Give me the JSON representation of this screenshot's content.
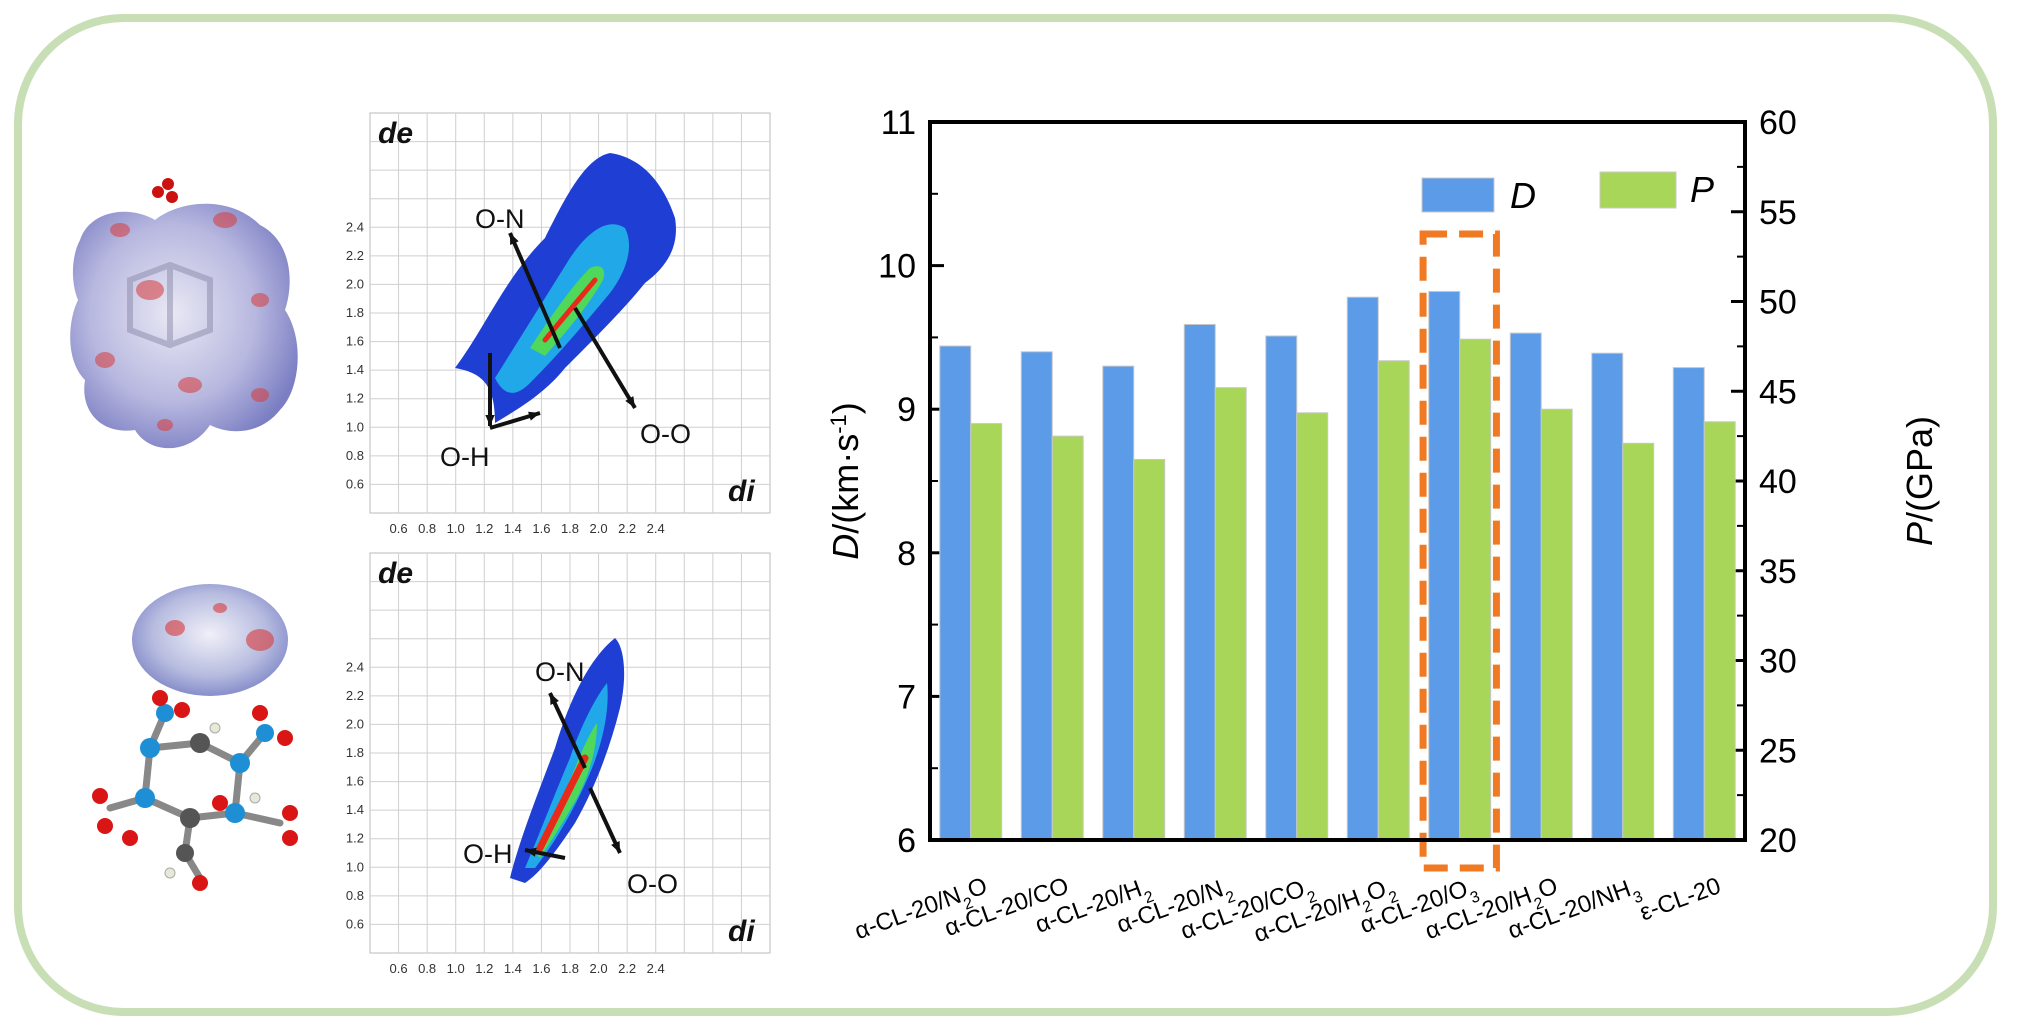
{
  "fingerprints": [
    {
      "ylabel": "de",
      "xlabel": "di",
      "yticks": [
        "0.6",
        "0.8",
        "1.0",
        "1.2",
        "1.4",
        "1.6",
        "1.8",
        "2.0",
        "2.2",
        "2.4"
      ],
      "xticks": [
        "0.6",
        "0.8",
        "1.0",
        "1.2",
        "1.4",
        "1.6",
        "1.8",
        "2.0",
        "2.2",
        "2.4"
      ],
      "labels": {
        "on": "O-N",
        "oo": "O-O",
        "oh": "O-H"
      }
    },
    {
      "ylabel": "de",
      "xlabel": "di",
      "yticks": [
        "0.6",
        "0.8",
        "1.0",
        "1.2",
        "1.4",
        "1.6",
        "1.8",
        "2.0",
        "2.2",
        "2.4"
      ],
      "xticks": [
        "0.6",
        "0.8",
        "1.0",
        "1.2",
        "1.4",
        "1.6",
        "1.8",
        "2.0",
        "2.2",
        "2.4"
      ],
      "labels": {
        "on": "O-N",
        "oo": "O-O",
        "oh": "O-H"
      }
    }
  ],
  "chart_data": {
    "type": "bar",
    "categories": [
      "α-CL-20/N2O",
      "α-CL-20/CO",
      "α-CL-20/H2",
      "α-CL-20/N2",
      "α-CL-20/CO2",
      "α-CL-20/H2O2",
      "α-CL-20/O3",
      "α-CL-20/H2O",
      "α-CL-20/NH3",
      "ε-CL-20"
    ],
    "category_parts": [
      [
        "α-CL-20/N",
        "2",
        "O"
      ],
      [
        "α-CL-20/CO",
        "",
        ""
      ],
      [
        "α-CL-20/H",
        "2",
        ""
      ],
      [
        "α-CL-20/N",
        "2",
        ""
      ],
      [
        "α-CL-20/CO",
        "2",
        ""
      ],
      [
        "α-CL-20/H",
        "2",
        "O",
        "2"
      ],
      [
        "α-CL-20/O",
        "3",
        ""
      ],
      [
        "α-CL-20/H",
        "2",
        "O"
      ],
      [
        "α-CL-20/NH",
        "3",
        ""
      ],
      [
        "ε-CL-20",
        "",
        ""
      ]
    ],
    "series": [
      {
        "name": "D",
        "axis": "left",
        "color": "#5b9be8",
        "values": [
          9.44,
          9.4,
          9.3,
          9.59,
          9.51,
          9.78,
          9.82,
          9.53,
          9.39,
          9.29
        ]
      },
      {
        "name": "P",
        "axis": "right",
        "color": "#a8d658",
        "values": [
          43.2,
          42.5,
          41.2,
          45.2,
          43.8,
          46.7,
          47.9,
          44.0,
          42.1,
          43.3
        ]
      }
    ],
    "ylabel_left": {
      "italic": "D",
      "rest": "/(km·s",
      "sup": "-1",
      "close": ")"
    },
    "ylabel_right": {
      "italic": "P",
      "rest": "/(GPa)"
    },
    "ylim_left": [
      6,
      11
    ],
    "ylim_right": [
      20,
      60
    ],
    "yticks_left": [
      "6",
      "7",
      "8",
      "9",
      "10",
      "11"
    ],
    "yticks_right": [
      "20",
      "25",
      "30",
      "35",
      "40",
      "45",
      "50",
      "55",
      "60"
    ],
    "highlight_index": 6,
    "highlight_color": "#f07a24",
    "legend": "top-right"
  }
}
